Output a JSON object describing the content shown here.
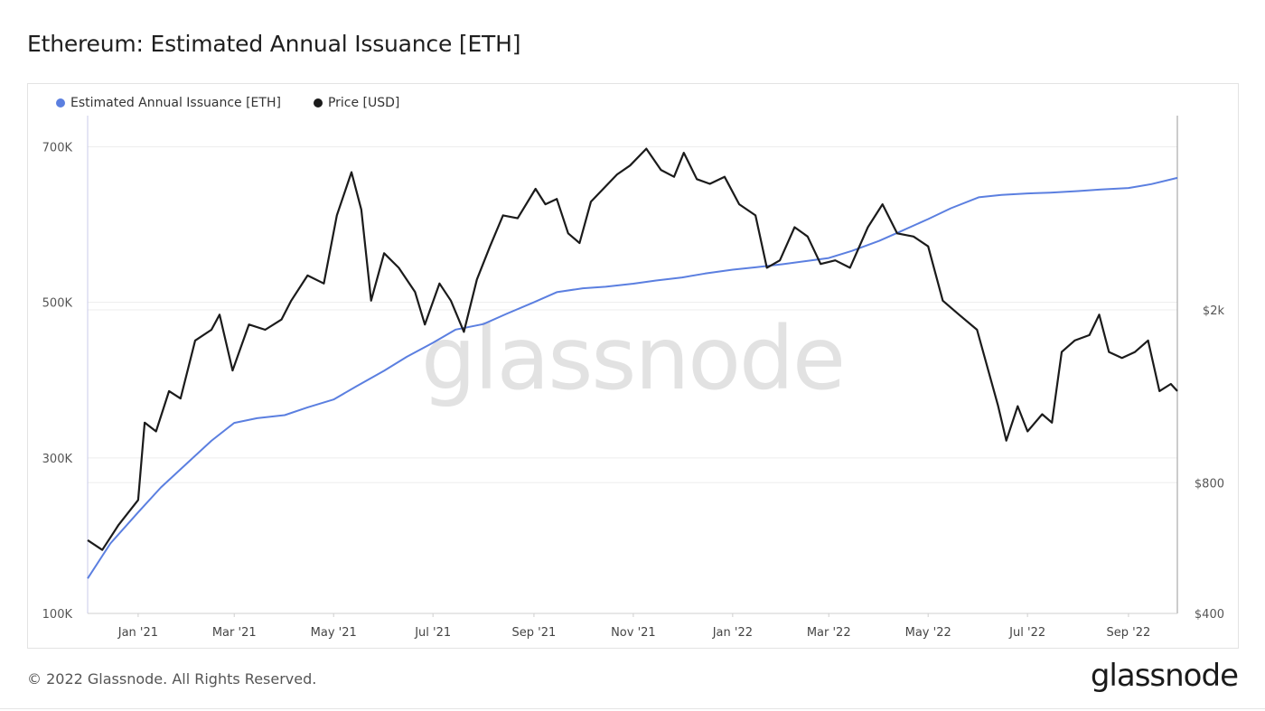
{
  "header": {
    "title": "Ethereum: Estimated Annual Issuance [ETH]"
  },
  "footer": {
    "copyright": "© 2022 Glassnode. All Rights Reserved.",
    "logo": "glassnode"
  },
  "watermark": "glassnode",
  "chart_data": {
    "type": "line",
    "legend_position": "top-left",
    "grid": true,
    "series": [
      {
        "name": "Estimated Annual Issuance [ETH]",
        "color": "#5b7fe0",
        "axis": "left",
        "points": [
          [
            "2020-12-01",
            145000
          ],
          [
            "2020-12-15",
            190000
          ],
          [
            "2021-01-01",
            230000
          ],
          [
            "2021-01-15",
            262000
          ],
          [
            "2021-02-01",
            295000
          ],
          [
            "2021-02-15",
            322000
          ],
          [
            "2021-03-01",
            345000
          ],
          [
            "2021-03-15",
            351000
          ],
          [
            "2021-04-01",
            355000
          ],
          [
            "2021-04-15",
            365000
          ],
          [
            "2021-05-01",
            375000
          ],
          [
            "2021-05-15",
            392000
          ],
          [
            "2021-06-01",
            412000
          ],
          [
            "2021-06-15",
            430000
          ],
          [
            "2021-07-01",
            448000
          ],
          [
            "2021-07-15",
            465000
          ],
          [
            "2021-08-01",
            472000
          ],
          [
            "2021-08-15",
            485000
          ],
          [
            "2021-09-01",
            500000
          ],
          [
            "2021-09-15",
            513000
          ],
          [
            "2021-10-01",
            518000
          ],
          [
            "2021-10-15",
            520000
          ],
          [
            "2021-11-01",
            524000
          ],
          [
            "2021-11-15",
            528000
          ],
          [
            "2021-12-01",
            532000
          ],
          [
            "2021-12-15",
            537000
          ],
          [
            "2022-01-01",
            542000
          ],
          [
            "2022-01-15",
            545000
          ],
          [
            "2022-02-01",
            549000
          ],
          [
            "2022-02-15",
            553000
          ],
          [
            "2022-03-01",
            557000
          ],
          [
            "2022-03-15",
            566000
          ],
          [
            "2022-04-01",
            579000
          ],
          [
            "2022-04-15",
            592000
          ],
          [
            "2022-05-01",
            607000
          ],
          [
            "2022-05-15",
            621000
          ],
          [
            "2022-06-01",
            635000
          ],
          [
            "2022-06-15",
            638000
          ],
          [
            "2022-07-01",
            640000
          ],
          [
            "2022-07-15",
            641000
          ],
          [
            "2022-08-01",
            643000
          ],
          [
            "2022-08-15",
            645000
          ],
          [
            "2022-09-01",
            647000
          ],
          [
            "2022-09-15",
            652000
          ],
          [
            "2022-10-01",
            660000
          ]
        ]
      },
      {
        "name": "Price [USD]",
        "color": "#1b1b1b",
        "axis": "right",
        "points": [
          [
            "2020-12-01",
            590
          ],
          [
            "2020-12-10",
            560
          ],
          [
            "2020-12-20",
            640
          ],
          [
            "2021-01-01",
            730
          ],
          [
            "2021-01-05",
            1100
          ],
          [
            "2021-01-12",
            1050
          ],
          [
            "2021-01-20",
            1300
          ],
          [
            "2021-01-27",
            1250
          ],
          [
            "2021-02-05",
            1700
          ],
          [
            "2021-02-15",
            1800
          ],
          [
            "2021-02-20",
            1950
          ],
          [
            "2021-02-28",
            1450
          ],
          [
            "2021-03-10",
            1850
          ],
          [
            "2021-03-20",
            1800
          ],
          [
            "2021-03-30",
            1900
          ],
          [
            "2021-04-05",
            2100
          ],
          [
            "2021-04-15",
            2400
          ],
          [
            "2021-04-25",
            2300
          ],
          [
            "2021-05-03",
            3300
          ],
          [
            "2021-05-12",
            4150
          ],
          [
            "2021-05-18",
            3400
          ],
          [
            "2021-05-24",
            2100
          ],
          [
            "2021-06-01",
            2700
          ],
          [
            "2021-06-10",
            2500
          ],
          [
            "2021-06-20",
            2200
          ],
          [
            "2021-06-26",
            1850
          ],
          [
            "2021-07-05",
            2300
          ],
          [
            "2021-07-12",
            2100
          ],
          [
            "2021-07-20",
            1780
          ],
          [
            "2021-07-28",
            2350
          ],
          [
            "2021-08-05",
            2800
          ],
          [
            "2021-08-13",
            3300
          ],
          [
            "2021-08-22",
            3250
          ],
          [
            "2021-09-02",
            3800
          ],
          [
            "2021-09-08",
            3500
          ],
          [
            "2021-09-15",
            3600
          ],
          [
            "2021-09-22",
            3000
          ],
          [
            "2021-09-29",
            2850
          ],
          [
            "2021-10-06",
            3550
          ],
          [
            "2021-10-15",
            3850
          ],
          [
            "2021-10-22",
            4100
          ],
          [
            "2021-10-30",
            4300
          ],
          [
            "2021-11-09",
            4700
          ],
          [
            "2021-11-18",
            4200
          ],
          [
            "2021-11-26",
            4050
          ],
          [
            "2021-12-02",
            4600
          ],
          [
            "2021-12-10",
            4000
          ],
          [
            "2021-12-18",
            3900
          ],
          [
            "2021-12-27",
            4050
          ],
          [
            "2022-01-05",
            3500
          ],
          [
            "2022-01-15",
            3300
          ],
          [
            "2022-01-22",
            2500
          ],
          [
            "2022-01-30",
            2600
          ],
          [
            "2022-02-08",
            3100
          ],
          [
            "2022-02-16",
            2950
          ],
          [
            "2022-02-24",
            2550
          ],
          [
            "2022-03-05",
            2600
          ],
          [
            "2022-03-14",
            2500
          ],
          [
            "2022-03-25",
            3100
          ],
          [
            "2022-04-03",
            3500
          ],
          [
            "2022-04-12",
            3000
          ],
          [
            "2022-04-22",
            2950
          ],
          [
            "2022-05-01",
            2800
          ],
          [
            "2022-05-10",
            2100
          ],
          [
            "2022-05-20",
            1950
          ],
          [
            "2022-05-31",
            1800
          ],
          [
            "2022-06-13",
            1200
          ],
          [
            "2022-06-18",
            1000
          ],
          [
            "2022-06-25",
            1200
          ],
          [
            "2022-07-01",
            1050
          ],
          [
            "2022-07-10",
            1150
          ],
          [
            "2022-07-16",
            1100
          ],
          [
            "2022-07-22",
            1600
          ],
          [
            "2022-07-30",
            1700
          ],
          [
            "2022-08-08",
            1750
          ],
          [
            "2022-08-14",
            1950
          ],
          [
            "2022-08-20",
            1600
          ],
          [
            "2022-08-28",
            1550
          ],
          [
            "2022-09-05",
            1600
          ],
          [
            "2022-09-13",
            1700
          ],
          [
            "2022-09-20",
            1300
          ],
          [
            "2022-09-27",
            1350
          ],
          [
            "2022-10-01",
            1300
          ]
        ]
      }
    ],
    "x_axis": {
      "tick_labels": [
        "Jan '21",
        "Mar '21",
        "May '21",
        "Jul '21",
        "Sep '21",
        "Nov '21",
        "Jan '22",
        "Mar '22",
        "May '22",
        "Jul '22",
        "Sep '22"
      ],
      "tick_dates": [
        "2021-01-01",
        "2021-03-01",
        "2021-05-01",
        "2021-07-01",
        "2021-09-01",
        "2021-11-01",
        "2022-01-01",
        "2022-03-01",
        "2022-05-01",
        "2022-07-01",
        "2022-09-01"
      ],
      "range": [
        "2020-12-01",
        "2022-10-01"
      ]
    },
    "y_left": {
      "range": [
        100000,
        740000
      ],
      "ticks": [
        100000,
        300000,
        500000,
        700000
      ],
      "tick_labels": [
        "100K",
        "300K",
        "500K",
        "700K"
      ]
    },
    "y_right": {
      "scale": "log",
      "range": [
        400,
        5600
      ],
      "ticks": [
        400,
        800,
        2000
      ],
      "tick_labels": [
        "$400",
        "$800",
        "$2k"
      ]
    }
  }
}
